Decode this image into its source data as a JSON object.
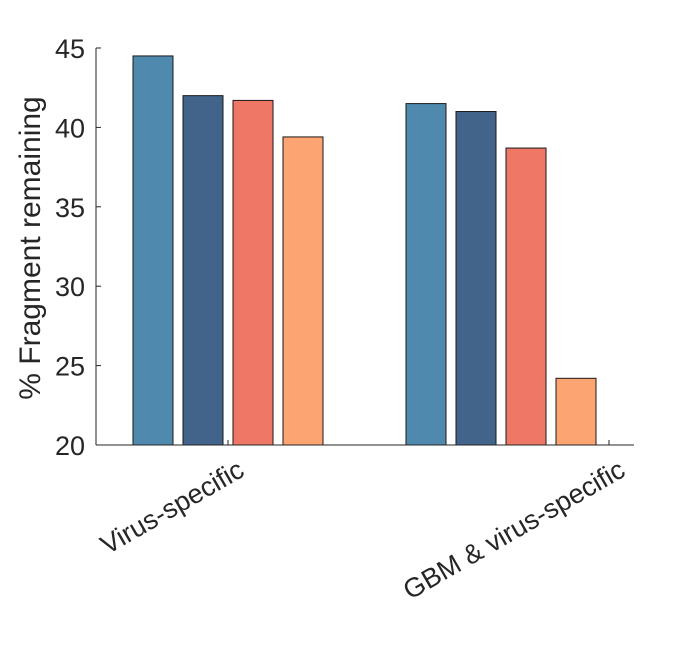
{
  "chart_data": {
    "type": "bar",
    "title": "",
    "xlabel": "",
    "ylabel": "% Fragment remaining",
    "ylim": [
      20,
      45
    ],
    "yticks": [
      20,
      25,
      30,
      35,
      40,
      45
    ],
    "grid": false,
    "categories": [
      "Virus-specific",
      "GBM & virus-specific"
    ],
    "series": [
      {
        "values": [
          44.5,
          41.5
        ],
        "color": "#4f89ae"
      },
      {
        "values": [
          42.0,
          41.0
        ],
        "color": "#42638a"
      },
      {
        "values": [
          41.7,
          38.7
        ],
        "color": "#ee7766"
      },
      {
        "values": [
          39.4,
          24.2
        ],
        "color": "#fca472"
      }
    ]
  }
}
